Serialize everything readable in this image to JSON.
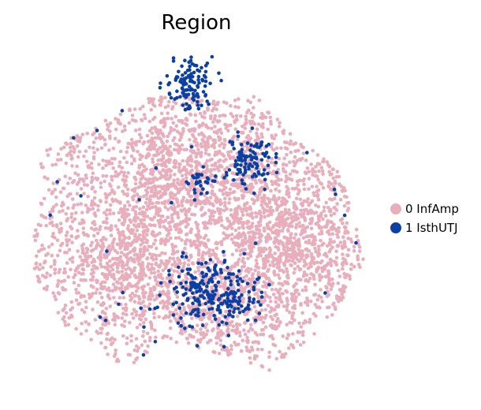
{
  "chart_data": {
    "type": "scatter",
    "title": "Region",
    "xlabel": "",
    "ylabel": "",
    "grid": false,
    "axes_visible": false,
    "legend_position": "right",
    "xlim": [
      0,
      100
    ],
    "ylim": [
      0,
      100
    ],
    "series": [
      {
        "name": "0 InfAmp",
        "color": "#e8aebb",
        "approx_point_count": 4200,
        "cluster_centers": [
          [
            38,
            55
          ],
          [
            50,
            70
          ],
          [
            70,
            50
          ],
          [
            30,
            35
          ],
          [
            55,
            25
          ],
          [
            80,
            40
          ]
        ]
      },
      {
        "name": "1 IsthUTJ",
        "color": "#0a3fa3",
        "approx_point_count": 520,
        "cluster_centers": [
          [
            47,
            91
          ],
          [
            65,
            68
          ],
          [
            53,
            29
          ],
          [
            51,
            62
          ],
          [
            62,
            25
          ]
        ]
      }
    ]
  }
}
